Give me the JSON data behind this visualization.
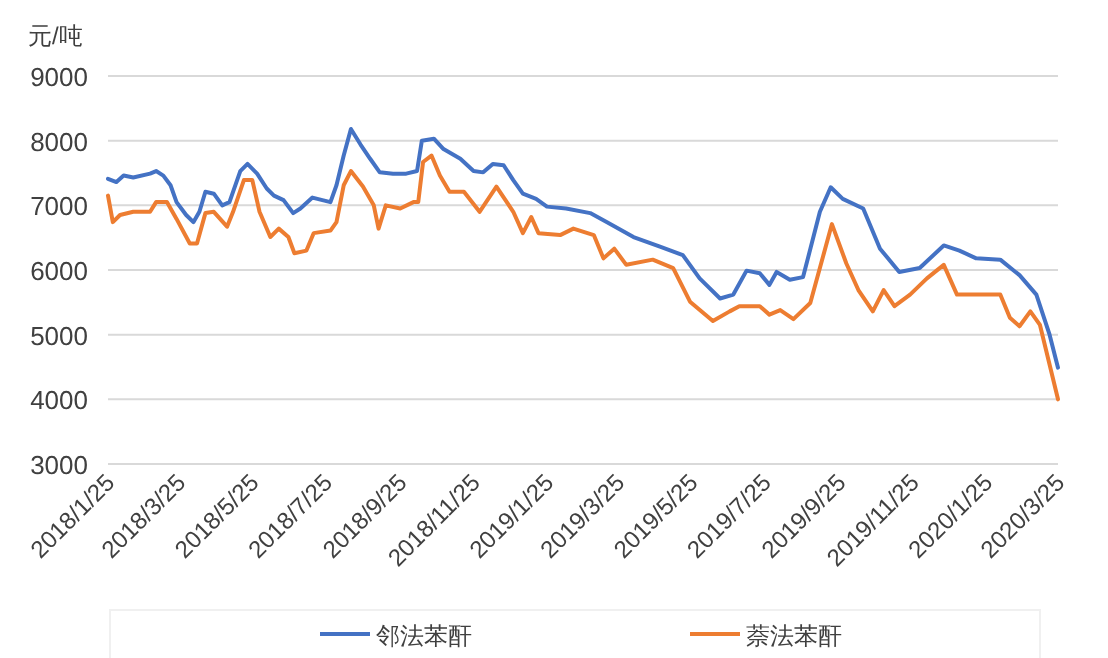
{
  "chart_data": {
    "type": "line",
    "ylabel": "元/吨",
    "ylim": [
      3000,
      9000
    ],
    "yticks": [
      3000,
      4000,
      5000,
      6000,
      7000,
      8000,
      9000
    ],
    "xlim": [
      "2018-01-25",
      "2020-03-25"
    ],
    "xticks": [
      {
        "value": "2018-01-25",
        "label": "2018/1/25"
      },
      {
        "value": "2018-03-25",
        "label": "2018/3/25"
      },
      {
        "value": "2018-05-25",
        "label": "2018/5/25"
      },
      {
        "value": "2018-07-25",
        "label": "2018/7/25"
      },
      {
        "value": "2018-09-25",
        "label": "2018/9/25"
      },
      {
        "value": "2018-11-25",
        "label": "2018/11/25"
      },
      {
        "value": "2019-01-25",
        "label": "2019/1/25"
      },
      {
        "value": "2019-03-25",
        "label": "2019/3/25"
      },
      {
        "value": "2019-05-25",
        "label": "2019/5/25"
      },
      {
        "value": "2019-07-25",
        "label": "2019/7/25"
      },
      {
        "value": "2019-09-25",
        "label": "2019/9/25"
      },
      {
        "value": "2019-11-25",
        "label": "2019/11/25"
      },
      {
        "value": "2020-01-25",
        "label": "2020/1/25"
      },
      {
        "value": "2020-03-25",
        "label": "2020/3/25"
      }
    ],
    "grid": "y",
    "legend": "bottom",
    "marker": "none",
    "line_style": "solid",
    "series": [
      {
        "name": "邻法苯酐",
        "color": "#4472c4",
        "x": [
          "2018-01-25",
          "2018-02-01",
          "2018-02-07",
          "2018-02-15",
          "2018-03-01",
          "2018-03-06",
          "2018-03-12",
          "2018-03-18",
          "2018-03-23",
          "2018-03-31",
          "2018-04-06",
          "2018-04-11",
          "2018-04-16",
          "2018-04-23",
          "2018-04-30",
          "2018-05-06",
          "2018-05-15",
          "2018-05-21",
          "2018-05-29",
          "2018-06-06",
          "2018-06-12",
          "2018-06-20",
          "2018-06-28",
          "2018-07-04",
          "2018-07-14",
          "2018-07-29",
          "2018-08-03",
          "2018-08-09",
          "2018-08-15",
          "2018-08-23",
          "2018-08-31",
          "2018-09-08",
          "2018-09-19",
          "2018-09-30",
          "2018-10-09",
          "2018-10-13",
          "2018-10-23",
          "2018-10-31",
          "2018-11-14",
          "2018-11-25",
          "2018-12-03",
          "2018-12-11",
          "2018-12-20",
          "2018-12-28",
          "2019-01-05",
          "2019-01-16",
          "2019-01-25",
          "2019-02-10",
          "2019-03-02",
          "2019-03-16",
          "2019-04-07",
          "2019-04-29",
          "2019-05-18",
          "2019-06-01",
          "2019-06-18",
          "2019-06-29",
          "2019-07-10",
          "2019-07-21",
          "2019-07-29",
          "2019-08-04",
          "2019-08-15",
          "2019-08-26",
          "2019-09-09",
          "2019-09-18",
          "2019-09-28",
          "2019-10-15",
          "2019-10-29",
          "2019-11-14",
          "2019-12-01",
          "2019-12-21",
          "2020-01-03",
          "2020-01-17",
          "2020-02-06",
          "2020-02-22",
          "2020-03-07",
          "2020-03-18",
          "2020-03-25"
        ],
        "values": [
          7410,
          7360,
          7460,
          7430,
          7490,
          7530,
          7460,
          7310,
          7050,
          6850,
          6740,
          6900,
          7210,
          7180,
          7000,
          7050,
          7530,
          7640,
          7490,
          7260,
          7150,
          7080,
          6880,
          6950,
          7120,
          7050,
          7310,
          7770,
          8180,
          7940,
          7720,
          7510,
          7490,
          7490,
          7530,
          8000,
          8030,
          7870,
          7720,
          7530,
          7510,
          7640,
          7620,
          7390,
          7180,
          7100,
          6980,
          6950,
          6880,
          6740,
          6510,
          6360,
          6230,
          5870,
          5560,
          5620,
          5990,
          5950,
          5770,
          5970,
          5850,
          5890,
          6900,
          7280,
          7100,
          6950,
          6330,
          5970,
          6030,
          6380,
          6300,
          6180,
          6160,
          5920,
          5620,
          5000,
          4490
        ]
      },
      {
        "name": "萘法苯酐",
        "color": "#ed7d31",
        "x": [
          "2018-01-25",
          "2018-01-29",
          "2018-02-04",
          "2018-02-15",
          "2018-03-01",
          "2018-03-06",
          "2018-03-15",
          "2018-03-23",
          "2018-04-03",
          "2018-04-09",
          "2018-04-16",
          "2018-04-23",
          "2018-05-04",
          "2018-05-09",
          "2018-05-18",
          "2018-05-25",
          "2018-05-31",
          "2018-06-09",
          "2018-06-16",
          "2018-06-24",
          "2018-06-29",
          "2018-07-09",
          "2018-07-15",
          "2018-07-29",
          "2018-08-03",
          "2018-08-09",
          "2018-08-15",
          "2018-08-25",
          "2018-09-03",
          "2018-09-07",
          "2018-09-13",
          "2018-09-25",
          "2018-10-06",
          "2018-10-10",
          "2018-10-14",
          "2018-10-21",
          "2018-10-28",
          "2018-11-05",
          "2018-11-17",
          "2018-11-30",
          "2018-12-14",
          "2018-12-28",
          "2019-01-05",
          "2019-01-12",
          "2019-01-18",
          "2019-02-05",
          "2019-02-16",
          "2019-03-05",
          "2019-03-13",
          "2019-03-22",
          "2019-04-01",
          "2019-04-23",
          "2019-05-10",
          "2019-05-24",
          "2019-06-12",
          "2019-06-26",
          "2019-07-04",
          "2019-07-21",
          "2019-07-29",
          "2019-08-07",
          "2019-08-18",
          "2019-09-01",
          "2019-09-19",
          "2019-10-01",
          "2019-10-11",
          "2019-10-23",
          "2019-11-01",
          "2019-11-10",
          "2019-11-23",
          "2019-12-07",
          "2019-12-21",
          "2020-01-01",
          "2020-02-06",
          "2020-02-14",
          "2020-02-22",
          "2020-03-02",
          "2020-03-10",
          "2020-03-25"
        ],
        "values": [
          7150,
          6740,
          6850,
          6900,
          6900,
          7050,
          7050,
          6790,
          6410,
          6410,
          6880,
          6900,
          6670,
          6900,
          7390,
          7390,
          6900,
          6510,
          6640,
          6510,
          6260,
          6300,
          6570,
          6610,
          6740,
          7310,
          7530,
          7290,
          7000,
          6640,
          7000,
          6950,
          7050,
          7050,
          7670,
          7770,
          7460,
          7210,
          7210,
          6900,
          7290,
          6900,
          6570,
          6820,
          6570,
          6540,
          6640,
          6540,
          6180,
          6330,
          6080,
          6160,
          6030,
          5510,
          5210,
          5360,
          5440,
          5440,
          5310,
          5380,
          5240,
          5490,
          6710,
          6100,
          5690,
          5360,
          5690,
          5440,
          5620,
          5870,
          6080,
          5620,
          5620,
          5260,
          5130,
          5360,
          5150,
          4000
        ]
      }
    ]
  }
}
